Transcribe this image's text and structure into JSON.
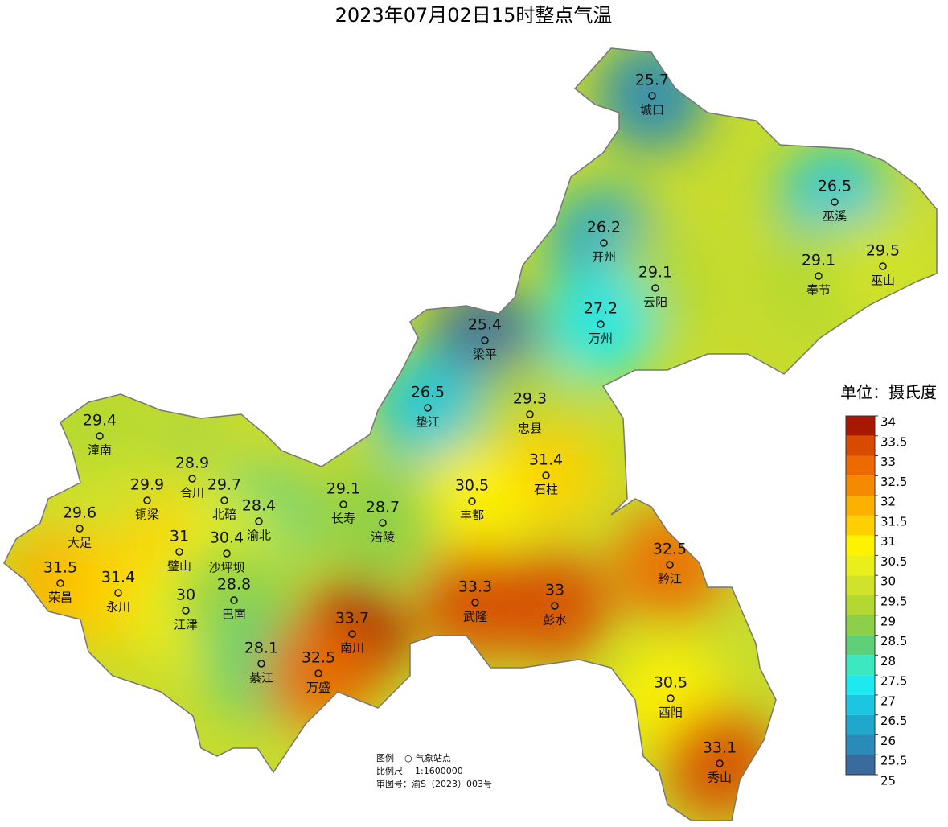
{
  "title": "2023年07月02日15时整点气温",
  "unit_label": "单位：摄氏度",
  "stations": [
    {
      "name": "城口",
      "temp": 25.7
    },
    {
      "name": "巫溪",
      "temp": 26.5
    },
    {
      "name": "开州",
      "temp": 26.2
    },
    {
      "name": "云阳",
      "temp": 29.1
    },
    {
      "name": "奉节",
      "temp": 29.1
    },
    {
      "name": "巫山",
      "temp": 29.5
    },
    {
      "name": "万州",
      "temp": 27.2
    },
    {
      "name": "梁平",
      "temp": 25.4
    },
    {
      "name": "垫江",
      "temp": 26.5
    },
    {
      "name": "忠县",
      "temp": 29.3
    },
    {
      "name": "潼南",
      "temp": 29.4
    },
    {
      "name": "合川",
      "temp": 28.9
    },
    {
      "name": "石柱",
      "temp": 31.4
    },
    {
      "name": "铜梁",
      "temp": 29.9
    },
    {
      "name": "北碚",
      "temp": 29.7
    },
    {
      "name": "长寿",
      "temp": 29.1
    },
    {
      "name": "丰都",
      "temp": 30.5
    },
    {
      "name": "渝北",
      "temp": 28.4
    },
    {
      "name": "涪陵",
      "temp": 28.7
    },
    {
      "name": "大足",
      "temp": 29.6
    },
    {
      "name": "璧山",
      "temp": 31
    },
    {
      "name": "沙坪坝",
      "temp": 30.4
    },
    {
      "name": "黔江",
      "temp": 32.5
    },
    {
      "name": "荣昌",
      "temp": 31.5
    },
    {
      "name": "永川",
      "temp": 31.4
    },
    {
      "name": "江津",
      "temp": 30
    },
    {
      "name": "巴南",
      "temp": 28.8
    },
    {
      "name": "武隆",
      "temp": 33.3
    },
    {
      "name": "彭水",
      "temp": 33
    },
    {
      "name": "南川",
      "temp": 33.7
    },
    {
      "name": "綦江",
      "temp": 28.1
    },
    {
      "name": "万盛",
      "temp": 32.5
    },
    {
      "name": "酉阳",
      "temp": 30.5
    },
    {
      "name": "秀山",
      "temp": 33.1
    }
  ],
  "scale": {
    "ticks": [
      25,
      25.5,
      26,
      26.5,
      27,
      27.5,
      28,
      28.5,
      29,
      29.5,
      30,
      30.5,
      31,
      31.5,
      32,
      32.5,
      33,
      33.5,
      34
    ],
    "colors": [
      "#3a6b9e",
      "#2a8ab8",
      "#1fa8cc",
      "#1cc6e0",
      "#1ee8f0",
      "#3ce8c0",
      "#5fd07a",
      "#8ccf4a",
      "#b3d832",
      "#d0e22a",
      "#e8ef1a",
      "#fff200",
      "#ffd000",
      "#fcb000",
      "#f58a00",
      "#ec6a00",
      "#d84a00",
      "#a81800"
    ]
  },
  "notes": {
    "legend": "图例",
    "station_symbol": "○",
    "station_label": "气象站点",
    "scale_label": "比例尺",
    "scale_value": "1:1600000",
    "approval": "审图号：渝S（2023）003号"
  }
}
